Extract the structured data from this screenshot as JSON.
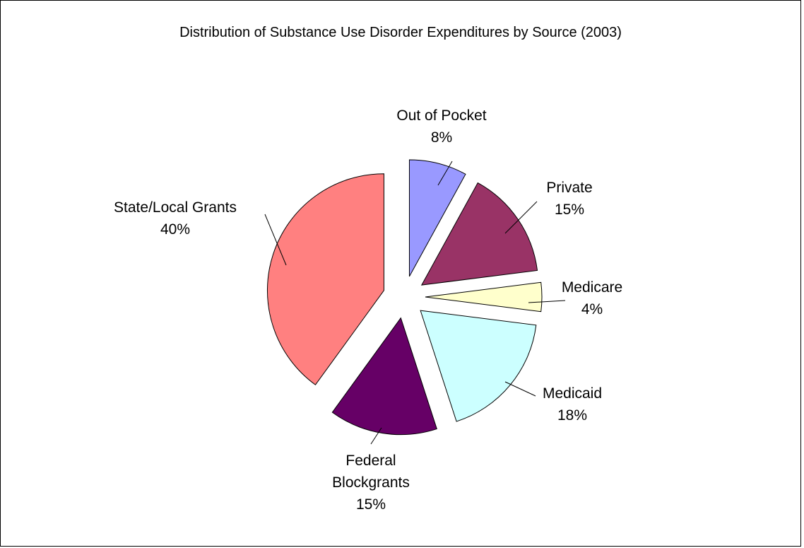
{
  "chart_data": {
    "type": "pie",
    "title": "Distribution of Substance Use Disorder Expenditures by Source (2003)",
    "exploded": true,
    "slices": [
      {
        "label": "Out of Pocket",
        "value": 8,
        "value_label": "8%",
        "color": "#9999ff"
      },
      {
        "label": "Private",
        "value": 15,
        "value_label": "15%",
        "color": "#993366"
      },
      {
        "label": "Medicare",
        "value": 4,
        "value_label": "4%",
        "color": "#ffffcc"
      },
      {
        "label": "Medicaid",
        "value": 18,
        "value_label": "18%",
        "color": "#ccffff"
      },
      {
        "label": "Federal Blockgrants",
        "value": 15,
        "value_label": "15%",
        "color": "#660066"
      },
      {
        "label": "State/Local Grants",
        "value": 40,
        "value_label": "40%",
        "color": "#ff8080"
      }
    ]
  }
}
